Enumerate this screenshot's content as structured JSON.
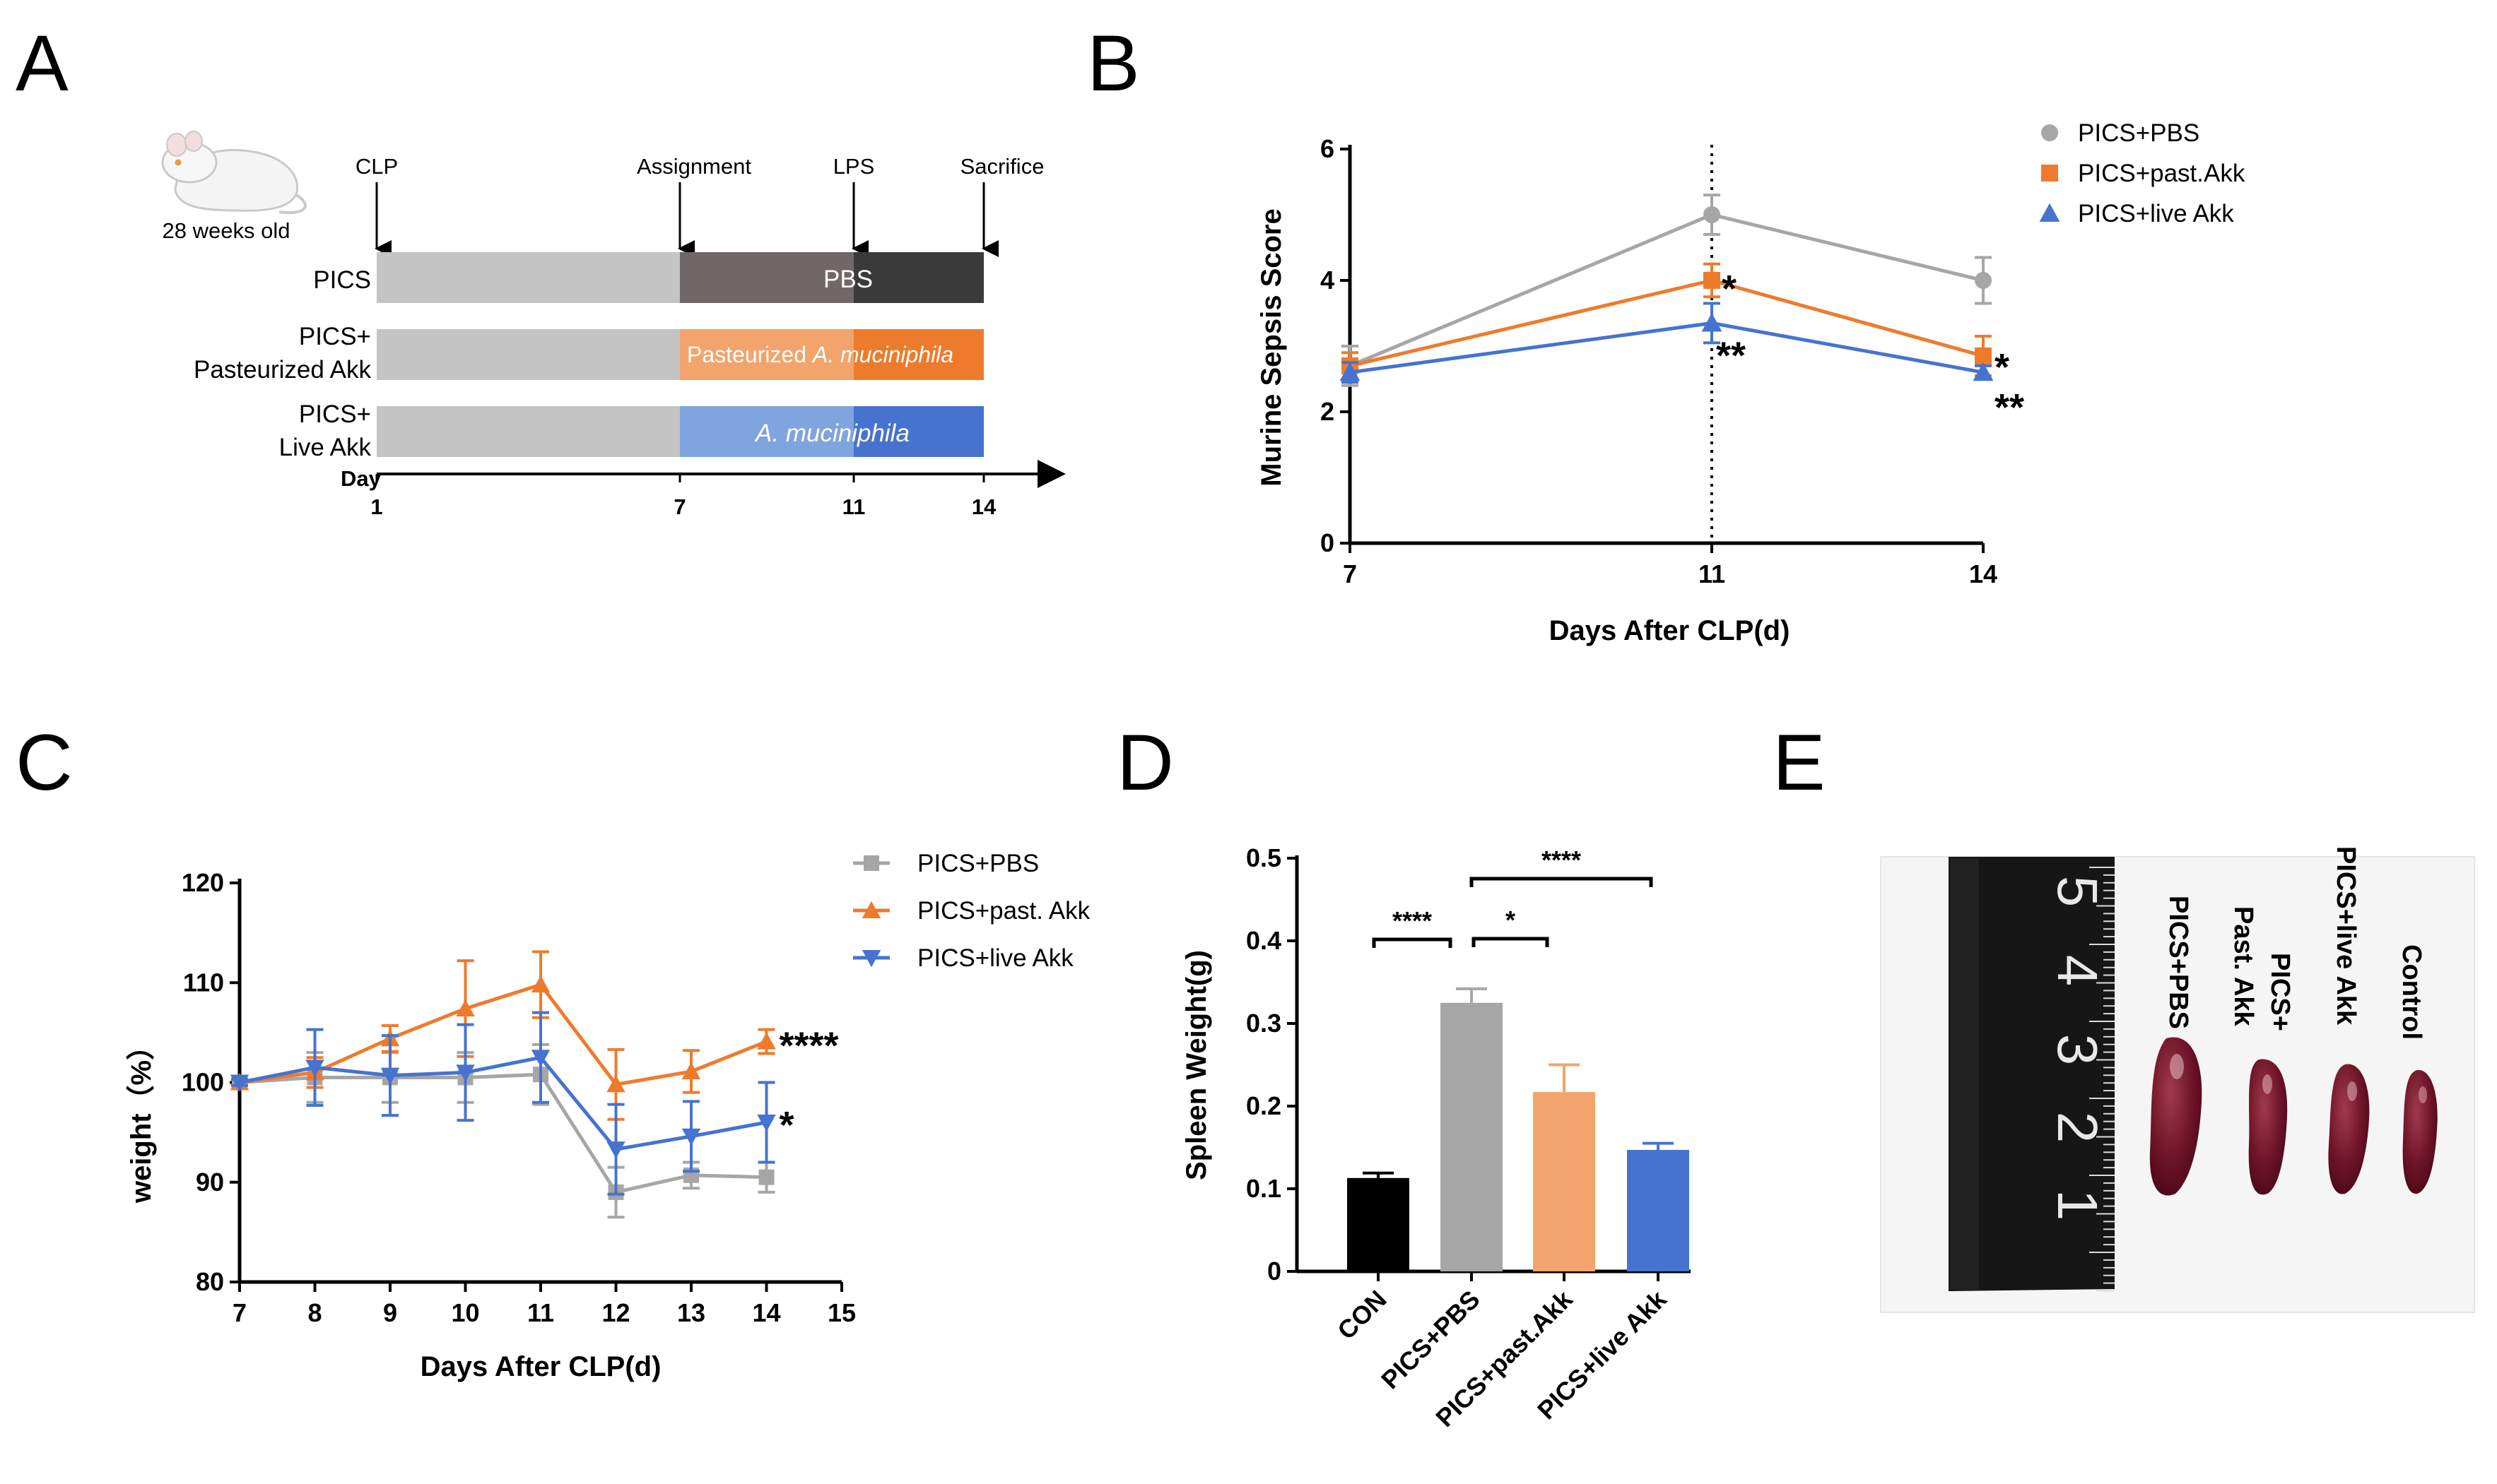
{
  "panel_letters": {
    "a": "A",
    "b": "B",
    "c": "C",
    "d": "D",
    "e": "E"
  },
  "panel_a": {
    "mouse_label": "28 weeks old",
    "events": [
      "CLP",
      "Assignment",
      "LPS",
      "Sacrifice"
    ],
    "rows": [
      {
        "label_lines": [
          "PICS"
        ],
        "bar_text": "PBS",
        "colors": [
          "#c4c4c4",
          "#706868",
          "#3a3a3a"
        ]
      },
      {
        "label_lines": [
          "PICS+",
          "Pasteurized Akk"
        ],
        "bar_text_plain": "Pasteurized ",
        "bar_text_italic": "A. muciniphila",
        "colors": [
          "#c4c4c4",
          "#f2a46c",
          "#ee7b2c"
        ]
      },
      {
        "label_lines": [
          "PICS+",
          "Live Akk"
        ],
        "bar_text_italic": "A. muciniphila",
        "colors": [
          "#c4c4c4",
          "#7fa4de",
          "#4673cf"
        ]
      }
    ],
    "day_label": "Day",
    "day_ticks": [
      "1",
      "7",
      "11",
      "14"
    ]
  },
  "chart_data": [
    {
      "panel": "B",
      "type": "line",
      "x": [
        7,
        11,
        14
      ],
      "xlabel": "Days After CLP(d)",
      "ylabel": "Murine Sepsis Score",
      "ylim": [
        0,
        6
      ],
      "yticks": [
        "0",
        "2",
        "4",
        "6"
      ],
      "xticks": [
        "7",
        "11",
        "14"
      ],
      "vline_at": 11,
      "legend_position": "top-right",
      "series": [
        {
          "name": "PICS+PBS",
          "marker": "circle",
          "color": "#a6a6a6",
          "values": [
            2.7,
            5.0,
            4.0
          ],
          "errors": [
            0.3,
            0.3,
            0.35
          ]
        },
        {
          "name": "PICS+past.Akk",
          "marker": "square",
          "color": "#ee7b2c",
          "values": [
            2.7,
            4.0,
            2.85
          ],
          "errors": [
            0.2,
            0.25,
            0.3
          ]
        },
        {
          "name": "PICS+live Akk",
          "marker": "triangle",
          "color": "#4673cf",
          "values": [
            2.6,
            3.35,
            2.6
          ],
          "errors": [
            0.15,
            0.3,
            0.1
          ]
        }
      ],
      "annotations": [
        {
          "text": "*",
          "x": 11,
          "series": "PICS+past.Akk"
        },
        {
          "text": "**",
          "x": 11,
          "series": "PICS+live Akk"
        },
        {
          "text": "*",
          "x": 14,
          "series": "PICS+past.Akk"
        },
        {
          "text": "**",
          "x": 14,
          "series": "PICS+live Akk"
        }
      ]
    },
    {
      "panel": "C",
      "type": "line",
      "x": [
        7,
        8,
        9,
        10,
        11,
        12,
        13,
        14
      ],
      "xlabel": "Days After CLP(d)",
      "ylabel": "weight（%）",
      "xlim": [
        7,
        15
      ],
      "ylim": [
        80,
        120
      ],
      "yticks": [
        "80",
        "90",
        "100",
        "110",
        "120"
      ],
      "xticks": [
        "7",
        "8",
        "9",
        "10",
        "11",
        "12",
        "13",
        "14",
        "15"
      ],
      "legend_position": "top-right",
      "series": [
        {
          "name": "PICS+PBS",
          "marker": "square",
          "color": "#a6a6a6",
          "values": [
            100,
            100.5,
            100.5,
            100.5,
            100.8,
            89.0,
            90.7,
            90.5
          ],
          "errors": [
            0.3,
            2.5,
            2.5,
            2.5,
            3.0,
            2.5,
            1.3,
            1.5
          ]
        },
        {
          "name": "PICS+past. Akk",
          "marker": "triangle",
          "color": "#ee7b2c",
          "values": [
            100,
            101.0,
            104.4,
            107.4,
            109.8,
            99.8,
            101.1,
            104.1
          ],
          "errors": [
            0.3,
            1.5,
            1.3,
            4.8,
            3.3,
            3.5,
            2.1,
            1.2
          ]
        },
        {
          "name": "PICS+live Akk",
          "marker": "triangle-down",
          "color": "#4673cf",
          "values": [
            100,
            101.5,
            100.7,
            101.0,
            102.5,
            93.3,
            94.6,
            96.0
          ],
          "errors": [
            0.3,
            3.8,
            4.0,
            4.8,
            4.5,
            4.5,
            3.5,
            4.0
          ]
        }
      ],
      "annotations": [
        {
          "text": "****",
          "x": 14,
          "series": "PICS+past. Akk"
        },
        {
          "text": "*",
          "x": 14,
          "series": "PICS+live Akk"
        }
      ]
    },
    {
      "panel": "D",
      "type": "bar",
      "categories": [
        "CON",
        "PICS+PBS",
        "PICS+past.Akk",
        "PICS+live Akk"
      ],
      "values": [
        0.113,
        0.325,
        0.217,
        0.147
      ],
      "errors": [
        0.006,
        0.017,
        0.033,
        0.008
      ],
      "colors": [
        "#000000",
        "#a6a6a6",
        "#f2a46c",
        "#4673cf"
      ],
      "ylabel": "Spleen Weight(g)",
      "ylim": [
        0,
        0.5
      ],
      "yticks": [
        "0",
        "0.1",
        "0.2",
        "0.3",
        "0.4",
        "0.5"
      ],
      "significance": [
        {
          "from": 0,
          "to": 1,
          "text": "****"
        },
        {
          "from": 1,
          "to": 2,
          "text": "*"
        },
        {
          "from": 1,
          "to": 3,
          "text": "****"
        }
      ]
    }
  ],
  "panel_e": {
    "ruler_numbers": [
      "5",
      "4",
      "3",
      "2",
      "1"
    ],
    "labels": [
      {
        "lines": [
          "PICS+PBS"
        ]
      },
      {
        "lines": [
          "Past. Akk",
          "PICS+"
        ]
      },
      {
        "lines": [
          "PICS+live Akk"
        ]
      },
      {
        "lines": [
          "Control"
        ]
      }
    ]
  }
}
